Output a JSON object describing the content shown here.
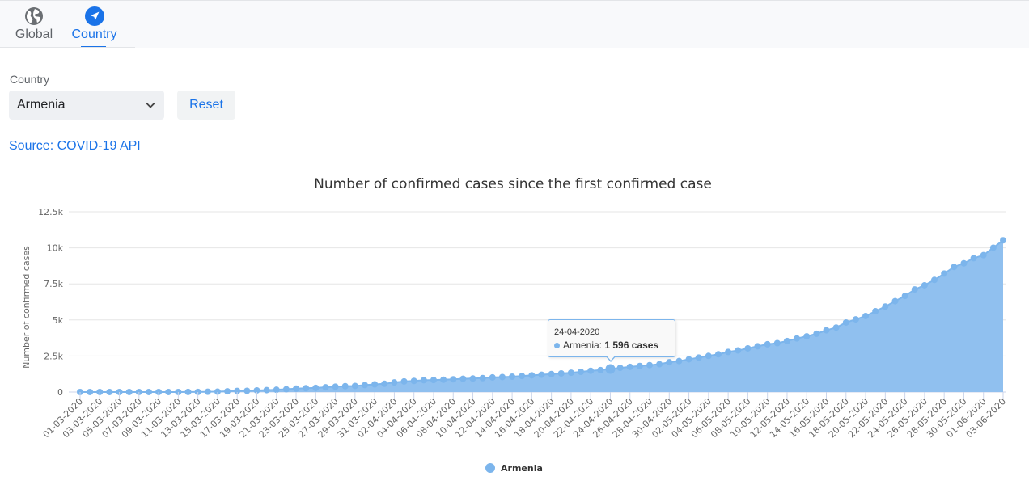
{
  "tabs": [
    {
      "label": "Global",
      "icon": "globe-icon",
      "active": false
    },
    {
      "label": "Country",
      "icon": "navigation-arrow-icon",
      "active": true
    }
  ],
  "filter": {
    "label": "Country",
    "selected": "Armenia",
    "reset_label": "Reset"
  },
  "source_link": "Source: COVID-19 API",
  "colors": {
    "accent": "#1a73e8",
    "series": "#7cb5ec",
    "area": "#90c0ef"
  },
  "tooltip": {
    "date": "24-04-2020",
    "series": "Armenia",
    "value_text": "1 596 cases"
  },
  "chart_data": {
    "type": "area",
    "title": "Number of confirmed cases since the first confirmed case",
    "ylabel": "Number of confirmed cases",
    "xlabel": "",
    "ylim": [
      0,
      12500
    ],
    "yticks": [
      "0",
      "2.5k",
      "5k",
      "7.5k",
      "10k",
      "12.5k"
    ],
    "legend_position": "bottom-center",
    "grid": true,
    "x_start": "01-03-2020",
    "x_labels": [
      "01-03-2020",
      "03-03-2020",
      "05-03-2020",
      "07-03-2020",
      "09-03-2020",
      "11-03-2020",
      "13-03-2020",
      "15-03-2020",
      "17-03-2020",
      "19-03-2020",
      "21-03-2020",
      "23-03-2020",
      "25-03-2020",
      "27-03-2020",
      "29-03-2020",
      "31-03-2020",
      "02-04-2020",
      "04-04-2020",
      "06-04-2020",
      "08-04-2020",
      "10-04-2020",
      "12-04-2020",
      "14-04-2020",
      "16-04-2020",
      "18-04-2020",
      "20-04-2020",
      "22-04-2020",
      "24-04-2020",
      "26-04-2020",
      "28-04-2020",
      "30-04-2020",
      "02-05-2020",
      "04-05-2020",
      "06-05-2020",
      "08-05-2020",
      "10-05-2020",
      "12-05-2020",
      "14-05-2020",
      "16-05-2020",
      "18-05-2020",
      "20-05-2020",
      "22-05-2020",
      "24-05-2020",
      "26-05-2020",
      "28-05-2020",
      "30-05-2020",
      "01-06-2020",
      "03-06-2020"
    ],
    "series": [
      {
        "name": "Armenia",
        "values": [
          1,
          1,
          1,
          1,
          1,
          1,
          1,
          1,
          1,
          1,
          1,
          4,
          8,
          18,
          26,
          52,
          78,
          84,
          115,
          136,
          160,
          194,
          235,
          265,
          290,
          329,
          372,
          407,
          424,
          482,
          532,
          571,
          663,
          736,
          770,
          822,
          833,
          853,
          881,
          921,
          937,
          967,
          1013,
          1039,
          1067,
          1111,
          1159,
          1201,
          1248,
          1291,
          1339,
          1401,
          1473,
          1523,
          1596,
          1677,
          1746,
          1808,
          1867,
          1932,
          2066,
          2148,
          2273,
          2386,
          2507,
          2619,
          2782,
          2884,
          3029,
          3175,
          3313,
          3392,
          3538,
          3718,
          3860,
          4044,
          4283,
          4472,
          4823,
          5041,
          5271,
          5606,
          5928,
          6302,
          6661,
          7113,
          7402,
          7774,
          8216,
          8676,
          8927,
          9282,
          9492,
          10009,
          10524
        ]
      }
    ]
  }
}
